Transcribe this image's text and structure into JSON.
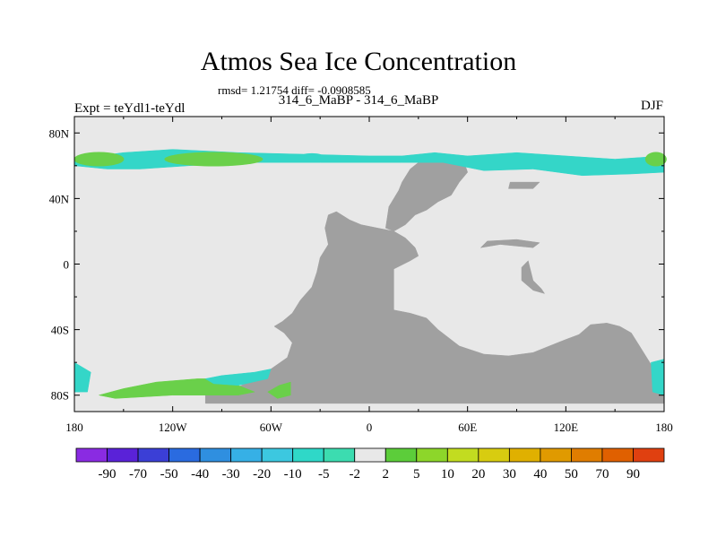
{
  "chart_data": {
    "type": "heatmap",
    "title": "Atmos Sea Ice Concentration",
    "stats": "rmsd= 1.21754 diff= -0.0908585",
    "subtitle": "314_6_MaBP - 314_6_MaBP",
    "left_label": "Expt = teYdl1-teYdl",
    "right_label": "DJF",
    "x_ticks": [
      {
        "lon": -180,
        "label": "180"
      },
      {
        "lon": -120,
        "label": "120W"
      },
      {
        "lon": -60,
        "label": "60W"
      },
      {
        "lon": 0,
        "label": "0"
      },
      {
        "lon": 60,
        "label": "60E"
      },
      {
        "lon": 120,
        "label": "120E"
      },
      {
        "lon": 180,
        "label": "180"
      }
    ],
    "y_ticks": [
      {
        "lat": 80,
        "label": "80N"
      },
      {
        "lat": 40,
        "label": "40N"
      },
      {
        "lat": 0,
        "label": "0"
      },
      {
        "lat": -40,
        "label": "40S"
      },
      {
        "lat": -80,
        "label": "80S"
      }
    ],
    "xlim": [
      -180,
      180
    ],
    "ylim": [
      -90,
      90
    ],
    "colorbar": {
      "colors": [
        "#8a2be2",
        "#5a22d8",
        "#3b3fd6",
        "#2a6be0",
        "#2f8fe0",
        "#36b0e6",
        "#3cc8e0",
        "#2fd8c8",
        "#3cdcb0",
        "#e8e8e8",
        "#5ccd3a",
        "#8dd62a",
        "#c2dc20",
        "#d8cc10",
        "#e0b000",
        "#e09a00",
        "#e07d00",
        "#e06000",
        "#e04010"
      ],
      "labels": [
        "-90",
        "-70",
        "-50",
        "-40",
        "-30",
        "-20",
        "-10",
        "-5",
        "-2",
        "2",
        "5",
        "10",
        "20",
        "30",
        "40",
        "50",
        "70",
        "90"
      ]
    },
    "colors": {
      "ocean": "#e8e8e8",
      "land": "#a0a0a0",
      "negative": "#34d6c8",
      "positive": "#6ad04a"
    }
  }
}
